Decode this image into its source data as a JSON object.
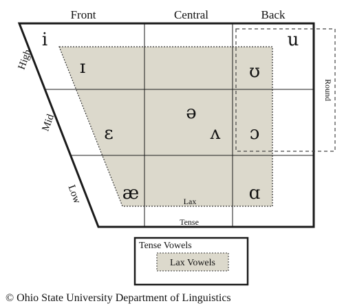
{
  "columns": {
    "front": "Front",
    "central": "Central",
    "back": "Back"
  },
  "rows": {
    "high": "High",
    "mid": "Mid",
    "low": "Low"
  },
  "round_label": "Round",
  "lax_label": "Lax",
  "tense_label": "Tense",
  "vowels": {
    "i": "i",
    "u": "u",
    "lax_i": "ɪ",
    "lax_u": "ʊ",
    "schwa": "ə",
    "epsilon": "ɛ",
    "wedge": "ʌ",
    "open_o": "ɔ",
    "ae": "æ",
    "script_a": "ɑ"
  },
  "legend": {
    "tense": "Tense Vowels",
    "lax": "Lax Vowels"
  },
  "copyright": "© Ohio State University Department of Linguistics",
  "colors": {
    "lax_fill": "#dcd9cc",
    "line": "#1a1a1a"
  }
}
